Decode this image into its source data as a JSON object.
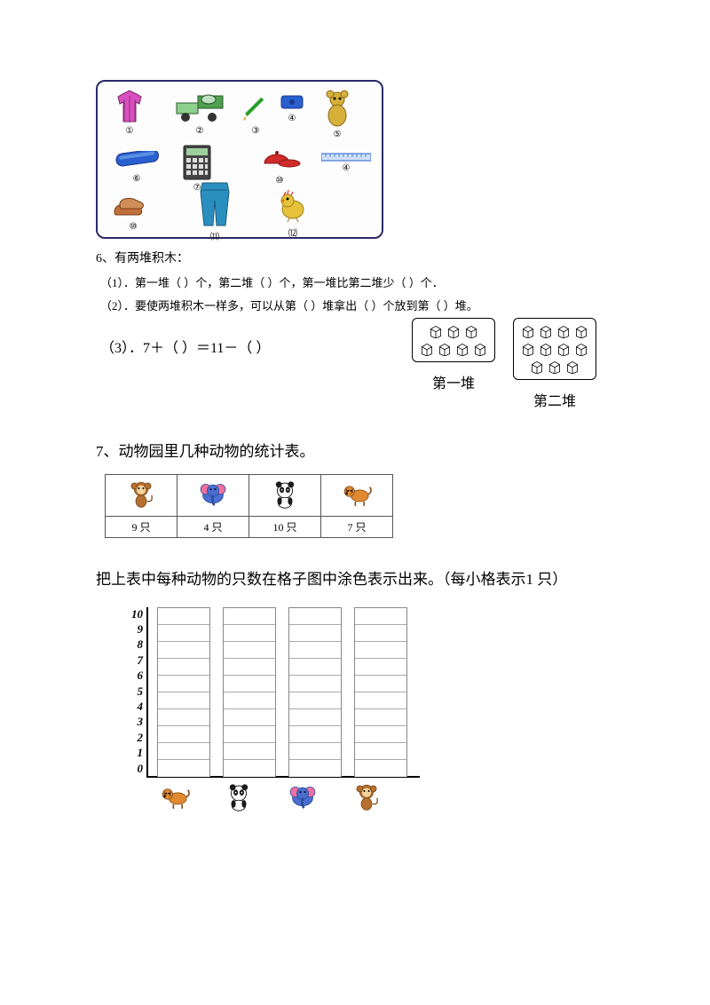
{
  "items_box": {
    "items": [
      {
        "id": "jacket",
        "num": "①",
        "color": "#d94fbf"
      },
      {
        "id": "truck",
        "num": "②",
        "color": "#4fa04f"
      },
      {
        "id": "pencil",
        "num": "③",
        "color": "#2a9f2a"
      },
      {
        "id": "sharp",
        "num": "④",
        "color": "#2a5fd0"
      },
      {
        "id": "teddy",
        "num": "⑤",
        "color": "#d6b03a"
      },
      {
        "id": "pcase",
        "num": "⑥",
        "color": "#2a5fd0"
      },
      {
        "id": "calc",
        "num": "⑦",
        "color": "#444444"
      },
      {
        "id": "cap",
        "num": "⑩",
        "color": "#d12a2a"
      },
      {
        "id": "ruler",
        "num": "④",
        "color": "#2a5fd0"
      },
      {
        "id": "shoes",
        "num": "⑩",
        "color": "#c06f3a"
      },
      {
        "id": "pants",
        "num": "⑾",
        "color": "#2a8fbf"
      },
      {
        "id": "chick",
        "num": "⑿",
        "color": "#e6c23a"
      }
    ]
  },
  "q6": {
    "title": "6、有两堆积木：",
    "line1": "（1）．第一堆（  ）个，第二堆（  ）个，第一堆比第二堆少（    ）个．",
    "line2": "（2）．要使两堆积木一样多，可以从第（     ）堆拿出（     ）个放到第（    ）堆。",
    "eq": "（3）．7＋（      ）＝11－（      ）",
    "pile1_label": "第一堆",
    "pile2_label": "第二堆",
    "pile1_rows": [
      3,
      4
    ],
    "pile2_rows": [
      4,
      4,
      3
    ]
  },
  "q7": {
    "title": "7、动物园里几种动物的统计表。",
    "instruct": "把上表中每种动物的只数在格子图中涂色表示出来。（每小格表示1 只）",
    "table": {
      "animals": [
        "monkey",
        "elephant",
        "panda",
        "dog"
      ],
      "counts": [
        "9  只",
        "4  只",
        "10  只",
        "7   只"
      ]
    },
    "chart": {
      "y_ticks": [
        "10",
        "9",
        "8",
        "7",
        "6",
        "5",
        "4",
        "3",
        "2",
        "1",
        "0"
      ],
      "columns": 4,
      "rows": 10,
      "bottom_order": [
        "dog",
        "panda",
        "elephant",
        "monkey"
      ]
    }
  },
  "colors": {
    "monkey_body": "#b5702f",
    "monkey_face": "#f2d49a",
    "elephant_body": "#4a6fd0",
    "elephant_ear": "#f070a0",
    "panda_white": "#ffffff",
    "panda_black": "#1a1a1a",
    "dog_body": "#e08a2f",
    "dog_ear": "#8a4f1f"
  }
}
